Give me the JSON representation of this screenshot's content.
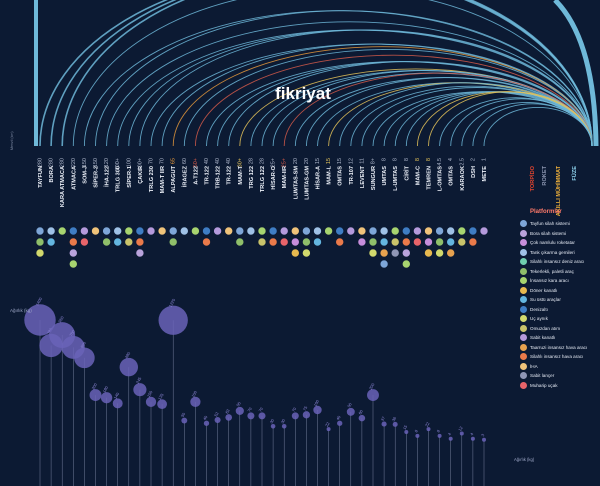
{
  "brand": "fikriyat",
  "chart_data": {
    "type": "radial-arc-range-chart",
    "range_axis_label": "Menzil (km)",
    "weight_axis_label": "Ağırlık (kg)",
    "legend_title": "Platformlar",
    "missiles": [
      {
        "name": "TAYFUN",
        "range": ">280",
        "arc": 280,
        "color": "#6fb9d9"
      },
      {
        "name": "BORA",
        "range": "280",
        "arc": 280,
        "color": "#6fb9d9"
      },
      {
        "name": "KARA ATMACA",
        "range": "280",
        "arc": 280,
        "color": "#6fb9d9"
      },
      {
        "name": "ATMACA",
        "range": "220",
        "arc": 220,
        "color": "#6fb9d9"
      },
      {
        "name": "SOM-J",
        "range": "150",
        "arc": 150,
        "color": "#6fb9d9"
      },
      {
        "name": "SİPER-2",
        "range": "150",
        "arc": 150,
        "color": "#6fb9d9"
      },
      {
        "name": "İHA-122",
        "range": "120",
        "arc": 120,
        "color": "#6fb9d9"
      },
      {
        "name": "TRLG 300",
        "range": "100+",
        "arc": 100,
        "color": "#6fb9d9"
      },
      {
        "name": "SİPER-1",
        "range": "100",
        "arc": 100,
        "color": "#6fb9d9"
      },
      {
        "name": "ÇAKIR",
        "range": "100+",
        "arc": 100,
        "color": "#6fb9d9"
      },
      {
        "name": "TRLG 230",
        "range": "70",
        "arc": 70,
        "color": "#6fb9d9"
      },
      {
        "name": "MAM-T IIR",
        "range": "70",
        "arc": 70,
        "color": "#6fb9d9"
      },
      {
        "name": "ALPAGUT",
        "range": "65",
        "arc": 65,
        "color": "#e89a3c"
      },
      {
        "name": "İRAGEZ",
        "range": "60",
        "arc": 60,
        "color": "#6fb9d9"
      },
      {
        "name": "A-T122",
        "range": "50+",
        "arc": 50,
        "color": "#d45a4a"
      },
      {
        "name": "TR-122",
        "range": "40",
        "arc": 40,
        "color": "#6fb9d9"
      },
      {
        "name": "TRB-122",
        "range": "40",
        "arc": 40,
        "color": "#6fb9d9"
      },
      {
        "name": "TR-122",
        "range": "40",
        "arc": 40,
        "color": "#6fb9d9"
      },
      {
        "name": "MAM-T",
        "range": "30+",
        "arc": 30,
        "color": "#e8c65a"
      },
      {
        "name": "TRG 122",
        "range": "28",
        "arc": 28,
        "color": "#6fb9d9"
      },
      {
        "name": "TRLG 122",
        "range": "28",
        "arc": 28,
        "color": "#6fb9d9"
      },
      {
        "name": "HİSAR-O",
        "range": "25+",
        "arc": 25,
        "color": "#6fb9d9"
      },
      {
        "name": "MAM-IIR",
        "range": "25+",
        "arc": 25,
        "color": "#d45a4a"
      },
      {
        "name": "LUMTAS-SM",
        "range": "20",
        "arc": 20,
        "color": "#6fb9d9"
      },
      {
        "name": "LUMTAS-GM",
        "range": "20",
        "arc": 20,
        "color": "#6fb9d9"
      },
      {
        "name": "HİSAR-A",
        "range": "15",
        "arc": 15,
        "color": "#6fb9d9"
      },
      {
        "name": "MAM-L",
        "range": "15",
        "arc": 15,
        "color": "#e8c65a"
      },
      {
        "name": "OMTAS",
        "range": "15",
        "arc": 15,
        "color": "#6fb9d9"
      },
      {
        "name": "TR-107",
        "range": "12",
        "arc": 12,
        "color": "#6fb9d9"
      },
      {
        "name": "LEVENT",
        "range": "11",
        "arc": 11,
        "color": "#6fb9d9"
      },
      {
        "name": "SUNGUR",
        "range": "8+",
        "arc": 8,
        "color": "#6fb9d9"
      },
      {
        "name": "UMTAS",
        "range": "8",
        "arc": 8,
        "color": "#6fb9d9"
      },
      {
        "name": "L-UMTAS",
        "range": "8",
        "arc": 8,
        "color": "#6fb9d9"
      },
      {
        "name": "CİRİT",
        "range": "8",
        "arc": 8,
        "color": "#6fb9d9"
      },
      {
        "name": "MAM-C",
        "range": "8",
        "arc": 8,
        "color": "#e8c65a"
      },
      {
        "name": "TEMREN",
        "range": "8",
        "arc": 8,
        "color": "#e8c65a"
      },
      {
        "name": "L-OMTAS",
        "range": "4.5",
        "arc": 4.5,
        "color": "#6fb9d9"
      },
      {
        "name": "OMTAS",
        "range": "4",
        "arc": 4,
        "color": "#6fb9d9"
      },
      {
        "name": "KARAOK",
        "range": "2.5",
        "arc": 2.5,
        "color": "#6fb9d9"
      },
      {
        "name": "DSH",
        "range": "2",
        "arc": 2,
        "color": "#6fb9d9"
      },
      {
        "name": "METE",
        "range": "1",
        "arc": 1,
        "color": "#6fb9d9"
      }
    ],
    "categories": [
      {
        "label": "TORPİDO",
        "color": "#e2452f"
      },
      {
        "label": "ROKET",
        "color": "#8c96b0"
      },
      {
        "label": "AKILLI MÜHİMMAT",
        "color": "#f2b23a"
      },
      {
        "label": "FÜZE",
        "color": "#8fd3ee"
      }
    ],
    "platform_rows": [
      [
        1,
        1,
        1,
        1,
        1,
        1,
        1,
        1,
        1,
        1,
        1,
        1,
        1,
        1,
        1,
        1,
        1,
        1,
        1,
        1,
        1,
        1,
        1,
        1,
        1,
        1,
        1,
        1,
        1,
        1,
        1,
        1,
        1,
        1,
        1,
        1,
        1,
        1,
        1,
        1,
        1
      ],
      [
        1,
        1,
        0,
        1,
        1,
        0,
        1,
        1,
        1,
        1,
        0,
        0,
        1,
        0,
        0,
        1,
        0,
        0,
        1,
        0,
        1,
        1,
        1,
        1,
        1,
        1,
        0,
        1,
        0,
        1,
        1,
        1,
        1,
        1,
        1,
        1,
        1,
        1,
        1,
        1,
        0
      ],
      [
        1,
        0,
        0,
        1,
        0,
        0,
        0,
        0,
        0,
        1,
        0,
        0,
        0,
        0,
        0,
        0,
        0,
        0,
        0,
        0,
        0,
        0,
        0,
        1,
        1,
        0,
        0,
        0,
        0,
        0,
        1,
        1,
        1,
        1,
        0,
        1,
        1,
        1,
        0,
        0,
        0
      ],
      [
        0,
        0,
        0,
        1,
        0,
        0,
        0,
        0,
        0,
        0,
        0,
        0,
        0,
        0,
        0,
        0,
        0,
        0,
        0,
        0,
        0,
        0,
        0,
        0,
        0,
        0,
        0,
        0,
        0,
        0,
        0,
        1,
        0,
        1,
        0,
        0,
        0,
        0,
        0,
        0,
        0
      ]
    ],
    "weights": [
      {
        "value": 1400,
        "label": "TAYFUN"
      },
      {
        "value": 780,
        "label": "BORA"
      },
      {
        "value": 950,
        "label": "KARA ATMACA"
      },
      {
        "value": 750,
        "label": "ATMACA"
      },
      {
        "value": 600,
        "label": "SOM-J"
      },
      {
        "value": 200,
        "label": "SİPER-2"
      },
      {
        "value": 180,
        "label": "İHA-122"
      },
      {
        "value": 140,
        "label": "TRLG 300"
      },
      {
        "value": 480,
        "label": "SİPER-1"
      },
      {
        "value": 245,
        "label": "ÇAKIR"
      },
      {
        "value": 150,
        "label": "TRLG 230"
      },
      {
        "value": 135,
        "label": "MAM-T IIR"
      },
      {
        "value": 1220,
        "label": "ALPAGUT"
      },
      {
        "value": 50,
        "label": "İRAGEZ"
      },
      {
        "value": 150,
        "label": "A-T122"
      },
      {
        "value": 40,
        "label": "TR-122"
      },
      {
        "value": 52,
        "label": "TRB-122"
      },
      {
        "value": 63,
        "label": "TR-122"
      },
      {
        "value": 95,
        "label": "MAM-T"
      },
      {
        "value": 70,
        "label": "TRG 122"
      },
      {
        "value": 70,
        "label": "TRLG 122"
      },
      {
        "value": 30,
        "label": "HİSAR-O"
      },
      {
        "value": 30,
        "label": "MAM-IIR"
      },
      {
        "value": 70,
        "label": "LUMTAS-SM"
      },
      {
        "value": 75,
        "label": "LUMTAS-GM"
      },
      {
        "value": 100,
        "label": "HİSAR-A"
      },
      {
        "value": 22,
        "label": "MAM-L"
      },
      {
        "value": 40,
        "label": "OMTAS"
      },
      {
        "value": 90,
        "label": "TR-107"
      },
      {
        "value": 60,
        "label": "LEVENT"
      },
      {
        "value": 200,
        "label": "SUNGUR"
      },
      {
        "value": 37,
        "label": "UMTAS"
      },
      {
        "value": 36,
        "label": "L-UMTAS"
      },
      {
        "value": 15,
        "label": "CİRİT"
      },
      {
        "value": 8,
        "label": "MAM-C"
      },
      {
        "value": 22,
        "label": "TEMREN"
      },
      {
        "value": 8,
        "label": "L-OMTAS"
      },
      {
        "value": 4,
        "label": "OMTAS"
      },
      {
        "value": 12,
        "label": "KARAOK"
      },
      {
        "value": 4,
        "label": "DSH"
      },
      {
        "value": 3,
        "label": "METE"
      }
    ],
    "platforms": [
      {
        "label": "Tayfun silah sistemi",
        "color": "#7ea6d8"
      },
      {
        "label": "Bora silah sistemi",
        "color": "#b9a3dc"
      },
      {
        "label": "Çok namlulu roketatar",
        "color": "#c78edb"
      },
      {
        "label": "Tank çıkarma gemileri",
        "color": "#9fc1e6"
      },
      {
        "label": "Silahlı insansız deniz aracı",
        "color": "#6fcfae"
      },
      {
        "label": "Tekerlekli, paletli araç",
        "color": "#8fbf6a"
      },
      {
        "label": "İnsansız kara aracı",
        "color": "#a7d46f"
      },
      {
        "label": "Döner kanatlı",
        "color": "#e8b94f"
      },
      {
        "label": "Su üstü araçlar",
        "color": "#64b6e0"
      },
      {
        "label": "Denizaltı",
        "color": "#3f7dc4"
      },
      {
        "label": "Uç aynık",
        "color": "#d2d96d"
      },
      {
        "label": "Omuzdan atım",
        "color": "#c9c36a"
      },
      {
        "label": "Sabit kanatlı",
        "color": "#b59adc"
      },
      {
        "label": "Taarruzi insansız hava aracı",
        "color": "#e7a24f"
      },
      {
        "label": "Silahlı insansız hava aracı",
        "color": "#ea7a4a"
      },
      {
        "label": "İHA",
        "color": "#f0c37a"
      },
      {
        "label": "Sabit lançer",
        "color": "#8f96b5"
      },
      {
        "label": "Muharip uçak",
        "color": "#e8646a"
      }
    ]
  }
}
